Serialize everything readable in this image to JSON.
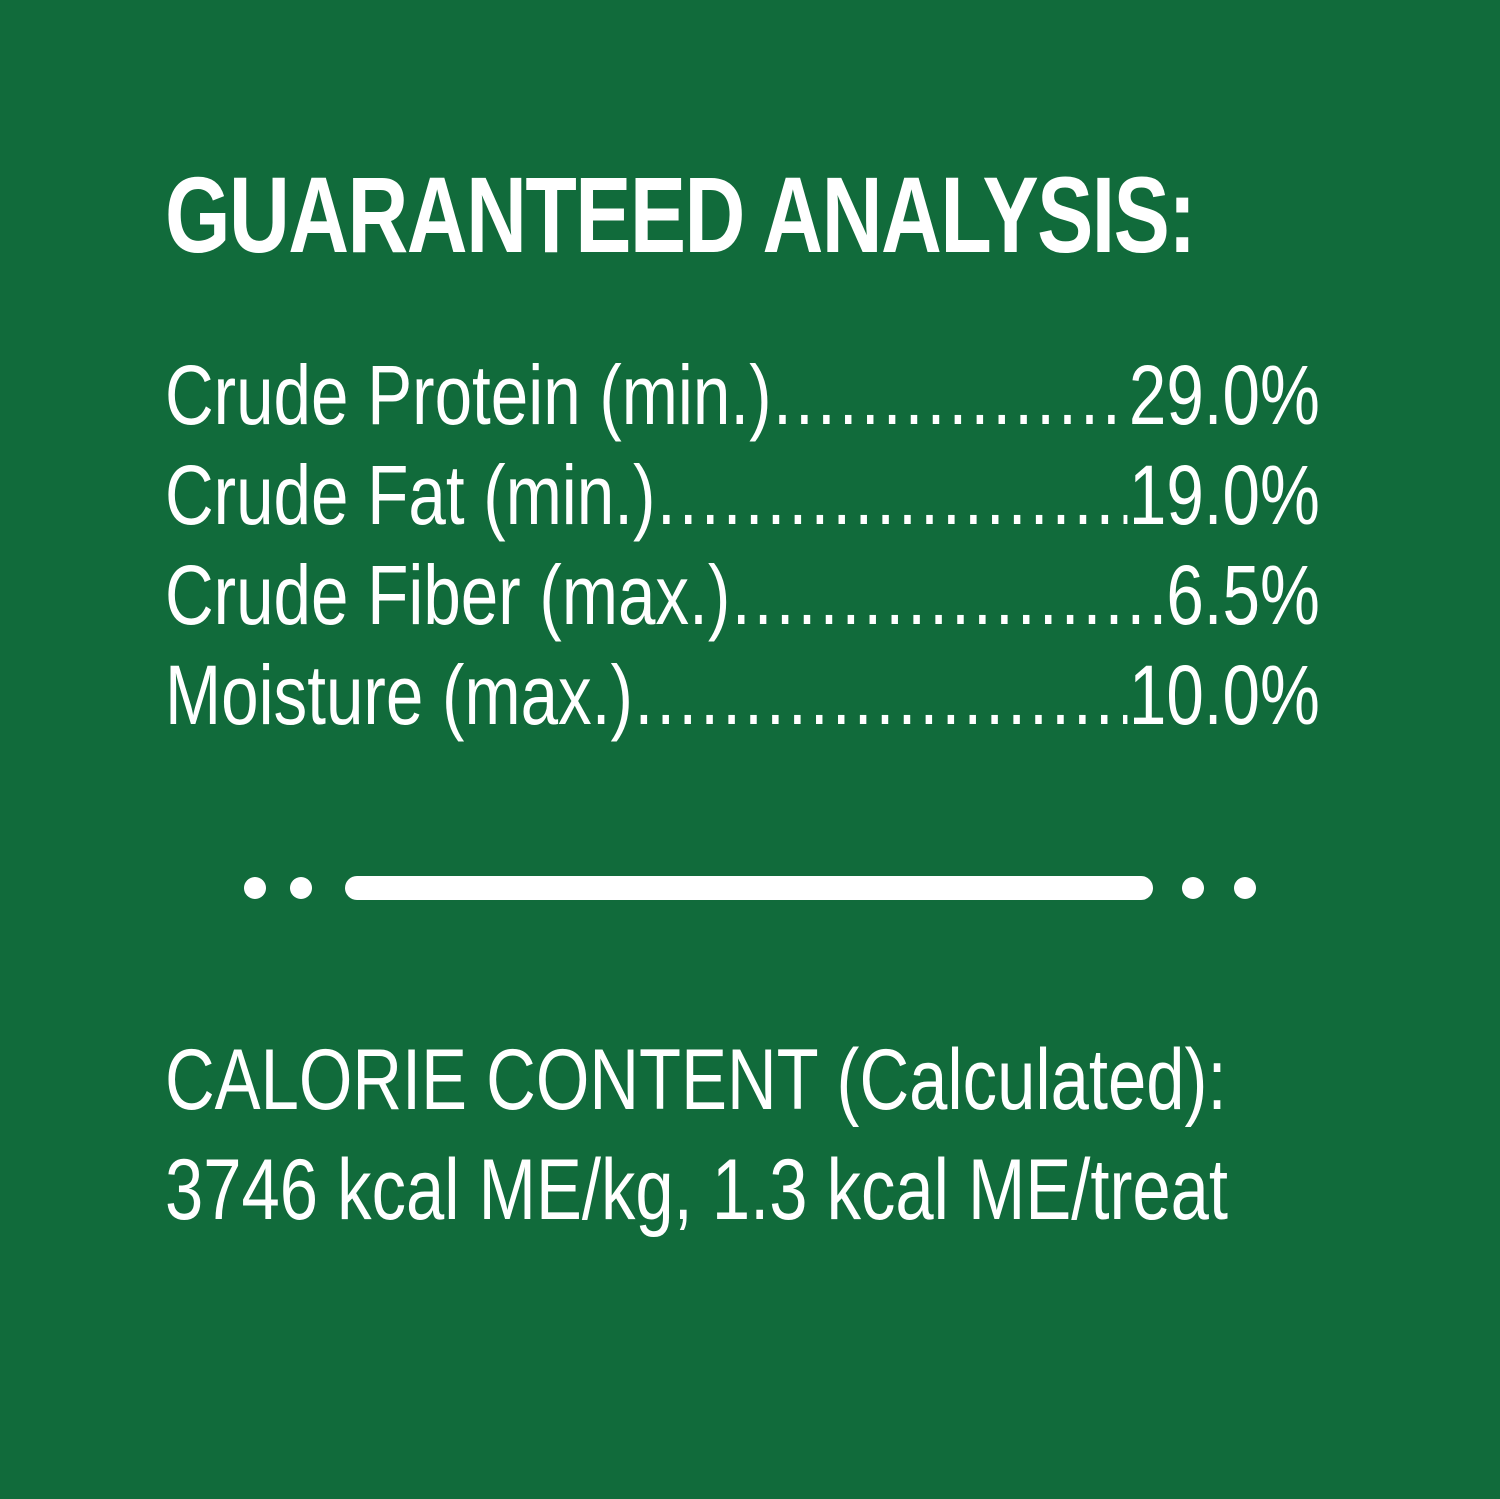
{
  "title": "GUARANTEED ANALYSIS:",
  "rows": [
    {
      "label": "Crude Protein (min.)",
      "value": "29.0%"
    },
    {
      "label": "Crude Fat (min.)",
      "value": "19.0%"
    },
    {
      "label": "Crude Fiber (max.)",
      "value": "6.5%"
    },
    {
      "label": "Moisture (max.)",
      "value": "10.0%"
    }
  ],
  "calorie": {
    "heading": "CALORIE CONTENT (Calculated):",
    "value": "3746 kcal ME/kg, 1.3 kcal ME/treat"
  },
  "colors": {
    "background": "#116b3b",
    "text": "#ffffff"
  }
}
